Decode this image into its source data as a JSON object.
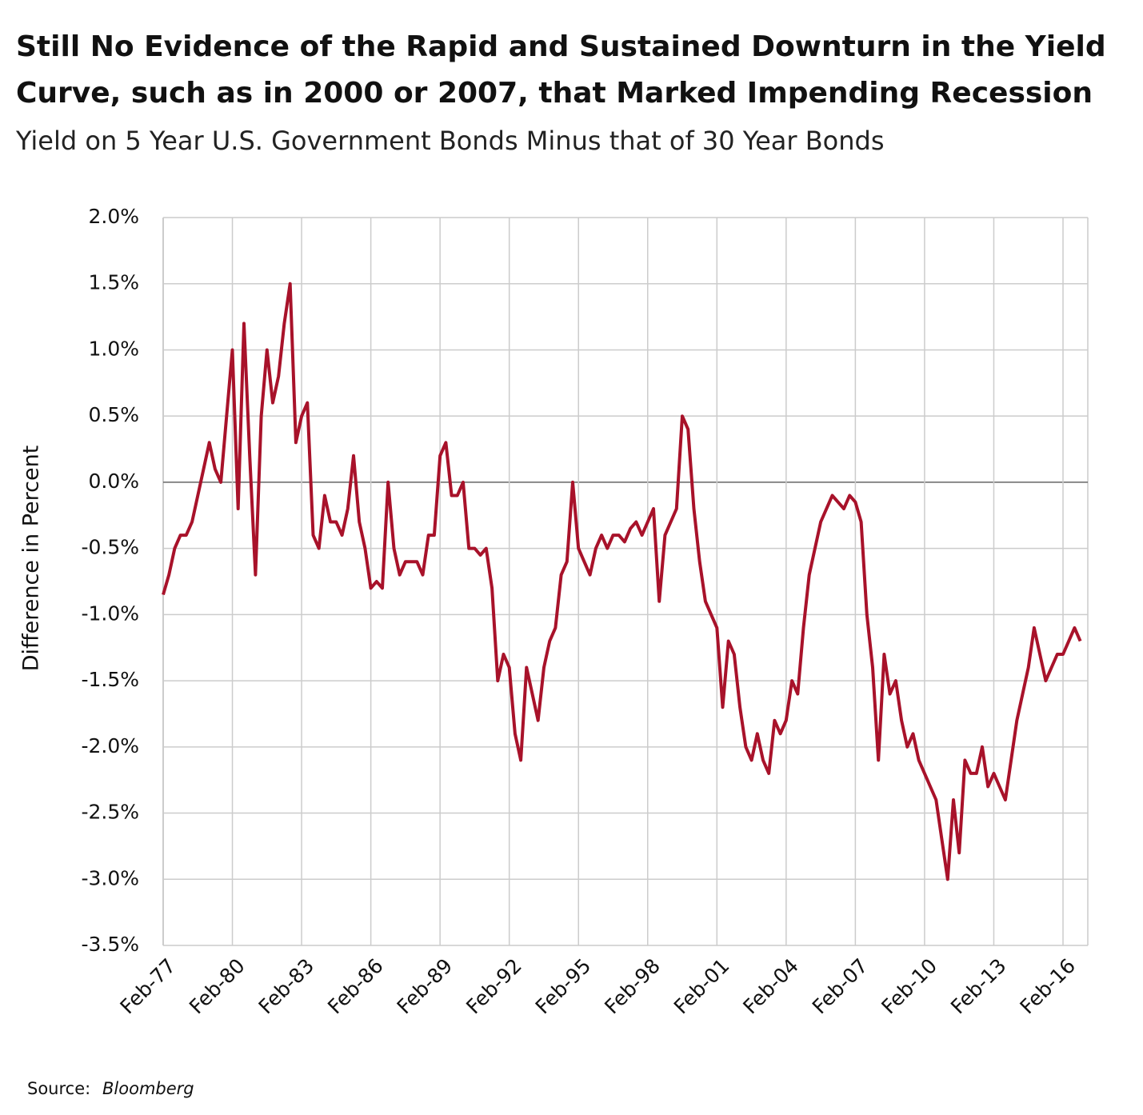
{
  "chart_data": {
    "type": "line",
    "title_lines": [
      "Still No Evidence of the Rapid and Sustained Downturn in the Yield",
      "Curve, such as in 2000 or 2007, that Marked Impending Recession"
    ],
    "subtitle": "Yield on 5 Year U.S. Government Bonds Minus that of 30 Year Bonds",
    "y_label": "Difference in Percent",
    "source_label": "Source:",
    "source": "Bloomberg",
    "categories": [
      "Feb-77",
      null,
      null,
      null,
      null,
      null,
      null,
      null,
      null,
      null,
      null,
      null,
      "Feb-80",
      null,
      null,
      null,
      null,
      null,
      null,
      null,
      null,
      null,
      null,
      null,
      "Feb-83",
      null,
      null,
      null,
      null,
      null,
      null,
      null,
      null,
      null,
      null,
      null,
      "Feb-86",
      null,
      null,
      null,
      null,
      null,
      null,
      null,
      null,
      null,
      null,
      null,
      "Feb-89",
      null,
      null,
      null,
      null,
      null,
      null,
      null,
      null,
      null,
      null,
      null,
      "Feb-92",
      null,
      null,
      null,
      null,
      null,
      null,
      null,
      null,
      null,
      null,
      null,
      "Feb-95",
      null,
      null,
      null,
      null,
      null,
      null,
      null,
      null,
      null,
      null,
      null,
      "Feb-98",
      null,
      null,
      null,
      null,
      null,
      null,
      null,
      null,
      null,
      null,
      null,
      "Feb-01",
      null,
      null,
      null,
      null,
      null,
      null,
      null,
      null,
      null,
      null,
      null,
      "Feb-04",
      null,
      null,
      null,
      null,
      null,
      null,
      null,
      null,
      null,
      null,
      null,
      "Feb-07",
      null,
      null,
      null,
      null,
      null,
      null,
      null,
      null,
      null,
      null,
      null,
      "Feb-10",
      null,
      null,
      null,
      null,
      null,
      null,
      null,
      null,
      null,
      null,
      null,
      "Feb-13",
      null,
      null,
      null,
      null,
      null,
      null,
      null,
      null,
      null,
      null,
      null,
      "Feb-16",
      null,
      null,
      null
    ],
    "series": [
      {
        "color": "#a8122a",
        "values": [
          -0.85,
          -0.7,
          -0.5,
          -0.4,
          -0.4,
          -0.3,
          -0.1,
          0.1,
          0.3,
          0.1,
          0.0,
          0.5,
          1.0,
          -0.2,
          1.2,
          0.2,
          -0.7,
          0.5,
          1.0,
          0.6,
          0.8,
          1.2,
          1.5,
          0.3,
          0.5,
          0.6,
          -0.4,
          -0.5,
          -0.1,
          -0.3,
          -0.3,
          -0.4,
          -0.2,
          0.2,
          -0.3,
          -0.5,
          -0.8,
          -0.75,
          -0.8,
          0.0,
          -0.5,
          -0.7,
          -0.6,
          -0.6,
          -0.6,
          -0.7,
          -0.4,
          -0.4,
          0.2,
          0.3,
          -0.1,
          -0.1,
          0.0,
          -0.5,
          -0.5,
          -0.55,
          -0.5,
          -0.8,
          -1.5,
          -1.3,
          -1.4,
          -1.9,
          -2.1,
          -1.4,
          -1.6,
          -1.8,
          -1.4,
          -1.2,
          -1.1,
          -0.7,
          -0.6,
          0.0,
          -0.5,
          -0.6,
          -0.7,
          -0.5,
          -0.4,
          -0.5,
          -0.4,
          -0.4,
          -0.45,
          -0.35,
          -0.3,
          -0.4,
          -0.3,
          -0.2,
          -0.9,
          -0.4,
          -0.3,
          -0.2,
          0.5,
          0.4,
          -0.2,
          -0.6,
          -0.9,
          -1.0,
          -1.1,
          -1.7,
          -1.2,
          -1.3,
          -1.7,
          -2.0,
          -2.1,
          -1.9,
          -2.1,
          -2.2,
          -1.8,
          -1.9,
          -1.8,
          -1.5,
          -1.6,
          -1.1,
          -0.7,
          -0.5,
          -0.3,
          -0.2,
          -0.1,
          -0.15,
          -0.2,
          -0.1,
          -0.15,
          -0.3,
          -1.0,
          -1.4,
          -2.1,
          -1.3,
          -1.6,
          -1.5,
          -1.8,
          -2.0,
          -1.9,
          -2.1,
          -2.2,
          -2.3,
          -2.4,
          -2.7,
          -3.0,
          -2.4,
          -2.8,
          -2.1,
          -2.2,
          -2.2,
          -2.0,
          -2.3,
          -2.2,
          -2.3,
          -2.4,
          -2.1,
          -1.8,
          -1.6,
          -1.4,
          -1.1,
          -1.3,
          -1.5,
          -1.4,
          -1.3,
          -1.3,
          -1.2,
          -1.1,
          -1.2
        ]
      }
    ],
    "ylim": [
      -3.5,
      2.0
    ],
    "yticks": [
      {
        "value": -3.5,
        "label": "-3.5%"
      },
      {
        "value": -3.0,
        "label": "-3.0%"
      },
      {
        "value": -2.5,
        "label": "-2.5%"
      },
      {
        "value": -2.0,
        "label": "-2.0%"
      },
      {
        "value": -1.5,
        "label": "-1.5%"
      },
      {
        "value": -1.0,
        "label": "-1.0%"
      },
      {
        "value": -0.5,
        "label": "-0.5%"
      },
      {
        "value": 0.0,
        "label": "0.0%"
      },
      {
        "value": 0.5,
        "label": "0.5%"
      },
      {
        "value": 1.0,
        "label": "1.0%"
      },
      {
        "value": 1.5,
        "label": "1.5%"
      },
      {
        "value": 2.0,
        "label": "2.0%"
      }
    ],
    "grid": true
  }
}
